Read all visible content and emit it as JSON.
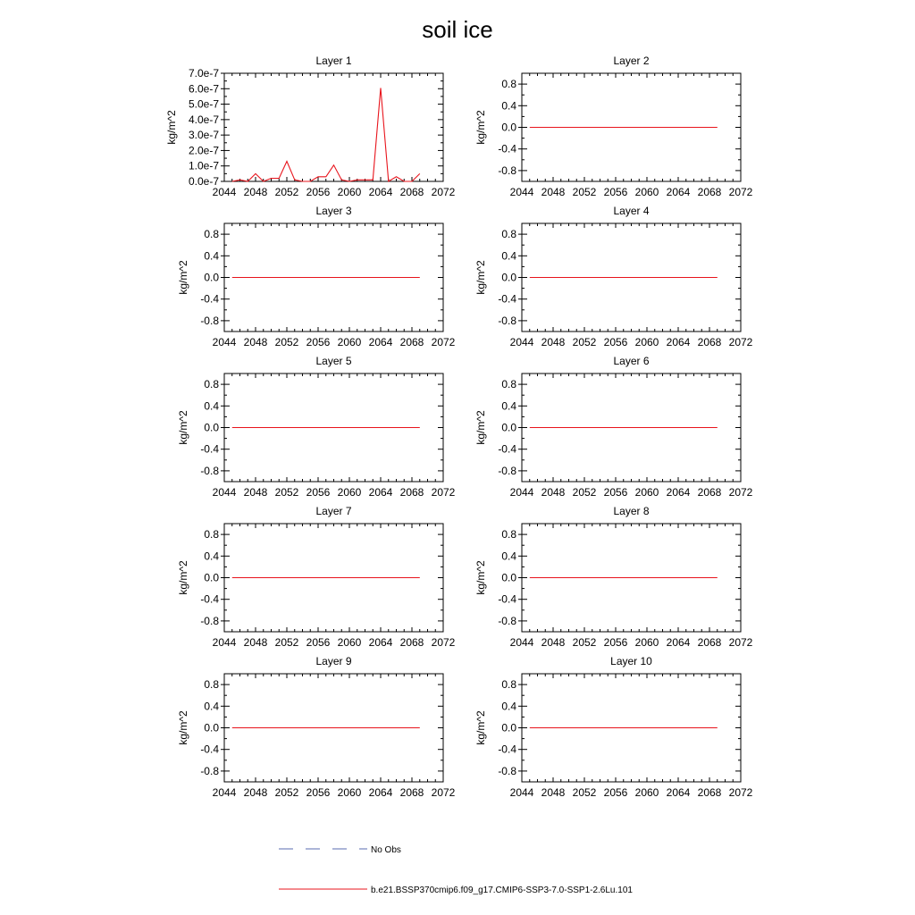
{
  "title": "soil ice",
  "chart_data": {
    "type": "line",
    "xlim": [
      2044,
      2072
    ],
    "xticks": [
      2044,
      2048,
      2052,
      2056,
      2060,
      2064,
      2068,
      2072
    ],
    "grid": false,
    "panels": [
      {
        "title": "Layer 1",
        "ylabel": "kg/m^2",
        "ylim": [
          0,
          7e-07
        ],
        "yticks": [
          {
            "value": 0,
            "label": "0.0e-7"
          },
          {
            "value": 1e-07,
            "label": "1.0e-7"
          },
          {
            "value": 2e-07,
            "label": "2.0e-7"
          },
          {
            "value": 3e-07,
            "label": "3.0e-7"
          },
          {
            "value": 4e-07,
            "label": "4.0e-7"
          },
          {
            "value": 5e-07,
            "label": "5.0e-7"
          },
          {
            "value": 6e-07,
            "label": "6.0e-7"
          },
          {
            "value": 7e-07,
            "label": "7.0e-7"
          }
        ],
        "series": [
          {
            "name": "b.e21.BSSP370cmip6.f09_g17.CMIP6-SSP3-7.0-SSP1-2.6Lu.101",
            "color": "#e8141c",
            "x": [
              2045,
              2046,
              2047,
              2048,
              2049,
              2050,
              2051,
              2052,
              2053,
              2054,
              2055,
              2056,
              2057,
              2058,
              2059,
              2060,
              2061,
              2062,
              2063,
              2064,
              2065,
              2066,
              2067,
              2068,
              2069
            ],
            "y": [
              0,
              1e-08,
              0,
              5e-08,
              0,
              2e-08,
              2e-08,
              1.3e-07,
              1e-08,
              0,
              0,
              3e-08,
              3e-08,
              1.05e-07,
              1e-08,
              0,
              1e-08,
              1e-08,
              1e-08,
              6.05e-07,
              0,
              3e-08,
              0,
              0,
              5e-08
            ]
          }
        ]
      },
      {
        "title": "Layer 2",
        "ylabel": "kg/m^2",
        "ylim": [
          -1,
          1
        ],
        "yticks": [
          {
            "value": 0.8,
            "label": "0.8"
          },
          {
            "value": 0.4,
            "label": "0.4"
          },
          {
            "value": 0,
            "label": "0.0"
          },
          {
            "value": -0.4,
            "label": "-0.4"
          },
          {
            "value": -0.8,
            "label": "-0.8"
          }
        ],
        "series": [
          {
            "name": "b.e21.BSSP370cmip6.f09_g17.CMIP6-SSP3-7.0-SSP1-2.6Lu.101",
            "color": "#e8141c",
            "x": [
              2045,
              2069
            ],
            "y": [
              0,
              0
            ]
          }
        ]
      },
      {
        "title": "Layer 3",
        "ylabel": "kg/m^2",
        "ylim": [
          -1,
          1
        ],
        "yticks": [
          {
            "value": 0.8,
            "label": "0.8"
          },
          {
            "value": 0.4,
            "label": "0.4"
          },
          {
            "value": 0,
            "label": "0.0"
          },
          {
            "value": -0.4,
            "label": "-0.4"
          },
          {
            "value": -0.8,
            "label": "-0.8"
          }
        ],
        "series": [
          {
            "name": "b.e21.BSSP370cmip6.f09_g17.CMIP6-SSP3-7.0-SSP1-2.6Lu.101",
            "color": "#e8141c",
            "x": [
              2045,
              2069
            ],
            "y": [
              0,
              0
            ]
          }
        ]
      },
      {
        "title": "Layer 4",
        "ylabel": "kg/m^2",
        "ylim": [
          -1,
          1
        ],
        "yticks": [
          {
            "value": 0.8,
            "label": "0.8"
          },
          {
            "value": 0.4,
            "label": "0.4"
          },
          {
            "value": 0,
            "label": "0.0"
          },
          {
            "value": -0.4,
            "label": "-0.4"
          },
          {
            "value": -0.8,
            "label": "-0.8"
          }
        ],
        "series": [
          {
            "name": "b.e21.BSSP370cmip6.f09_g17.CMIP6-SSP3-7.0-SSP1-2.6Lu.101",
            "color": "#e8141c",
            "x": [
              2045,
              2069
            ],
            "y": [
              0,
              0
            ]
          }
        ]
      },
      {
        "title": "Layer 5",
        "ylabel": "kg/m^2",
        "ylim": [
          -1,
          1
        ],
        "yticks": [
          {
            "value": 0.8,
            "label": "0.8"
          },
          {
            "value": 0.4,
            "label": "0.4"
          },
          {
            "value": 0,
            "label": "0.0"
          },
          {
            "value": -0.4,
            "label": "-0.4"
          },
          {
            "value": -0.8,
            "label": "-0.8"
          }
        ],
        "series": [
          {
            "name": "b.e21.BSSP370cmip6.f09_g17.CMIP6-SSP3-7.0-SSP1-2.6Lu.101",
            "color": "#e8141c",
            "x": [
              2045,
              2069
            ],
            "y": [
              0,
              0
            ]
          }
        ]
      },
      {
        "title": "Layer 6",
        "ylabel": "kg/m^2",
        "ylim": [
          -1,
          1
        ],
        "yticks": [
          {
            "value": 0.8,
            "label": "0.8"
          },
          {
            "value": 0.4,
            "label": "0.4"
          },
          {
            "value": 0,
            "label": "0.0"
          },
          {
            "value": -0.4,
            "label": "-0.4"
          },
          {
            "value": -0.8,
            "label": "-0.8"
          }
        ],
        "series": [
          {
            "name": "b.e21.BSSP370cmip6.f09_g17.CMIP6-SSP3-7.0-SSP1-2.6Lu.101",
            "color": "#e8141c",
            "x": [
              2045,
              2069
            ],
            "y": [
              0,
              0
            ]
          }
        ]
      },
      {
        "title": "Layer 7",
        "ylabel": "kg/m^2",
        "ylim": [
          -1,
          1
        ],
        "yticks": [
          {
            "value": 0.8,
            "label": "0.8"
          },
          {
            "value": 0.4,
            "label": "0.4"
          },
          {
            "value": 0,
            "label": "0.0"
          },
          {
            "value": -0.4,
            "label": "-0.4"
          },
          {
            "value": -0.8,
            "label": "-0.8"
          }
        ],
        "series": [
          {
            "name": "b.e21.BSSP370cmip6.f09_g17.CMIP6-SSP3-7.0-SSP1-2.6Lu.101",
            "color": "#e8141c",
            "x": [
              2045,
              2069
            ],
            "y": [
              0,
              0
            ]
          }
        ]
      },
      {
        "title": "Layer 8",
        "ylabel": "kg/m^2",
        "ylim": [
          -1,
          1
        ],
        "yticks": [
          {
            "value": 0.8,
            "label": "0.8"
          },
          {
            "value": 0.4,
            "label": "0.4"
          },
          {
            "value": 0,
            "label": "0.0"
          },
          {
            "value": -0.4,
            "label": "-0.4"
          },
          {
            "value": -0.8,
            "label": "-0.8"
          }
        ],
        "series": [
          {
            "name": "b.e21.BSSP370cmip6.f09_g17.CMIP6-SSP3-7.0-SSP1-2.6Lu.101",
            "color": "#e8141c",
            "x": [
              2045,
              2069
            ],
            "y": [
              0,
              0
            ]
          }
        ]
      },
      {
        "title": "Layer 9",
        "ylabel": "kg/m^2",
        "ylim": [
          -1,
          1
        ],
        "yticks": [
          {
            "value": 0.8,
            "label": "0.8"
          },
          {
            "value": 0.4,
            "label": "0.4"
          },
          {
            "value": 0,
            "label": "0.0"
          },
          {
            "value": -0.4,
            "label": "-0.4"
          },
          {
            "value": -0.8,
            "label": "-0.8"
          }
        ],
        "series": [
          {
            "name": "b.e21.BSSP370cmip6.f09_g17.CMIP6-SSP3-7.0-SSP1-2.6Lu.101",
            "color": "#e8141c",
            "x": [
              2045,
              2069
            ],
            "y": [
              0,
              0
            ]
          }
        ]
      },
      {
        "title": "Layer 10",
        "ylabel": "kg/m^2",
        "ylim": [
          -1,
          1
        ],
        "yticks": [
          {
            "value": 0.8,
            "label": "0.8"
          },
          {
            "value": 0.4,
            "label": "0.4"
          },
          {
            "value": 0,
            "label": "0.0"
          },
          {
            "value": -0.4,
            "label": "-0.4"
          },
          {
            "value": -0.8,
            "label": "-0.8"
          }
        ],
        "series": [
          {
            "name": "b.e21.BSSP370cmip6.f09_g17.CMIP6-SSP3-7.0-SSP1-2.6Lu.101",
            "color": "#e8141c",
            "x": [
              2045,
              2069
            ],
            "y": [
              0,
              0
            ]
          }
        ]
      }
    ],
    "legend": {
      "placement": "bottom-center",
      "entries": [
        {
          "label": "No Obs",
          "color": "#5a6bb0",
          "style": "dashed"
        },
        {
          "label": "b.e21.BSSP370cmip6.f09_g17.CMIP6-SSP3-7.0-SSP1-2.6Lu.101",
          "color": "#e8141c",
          "style": "solid"
        }
      ]
    }
  }
}
